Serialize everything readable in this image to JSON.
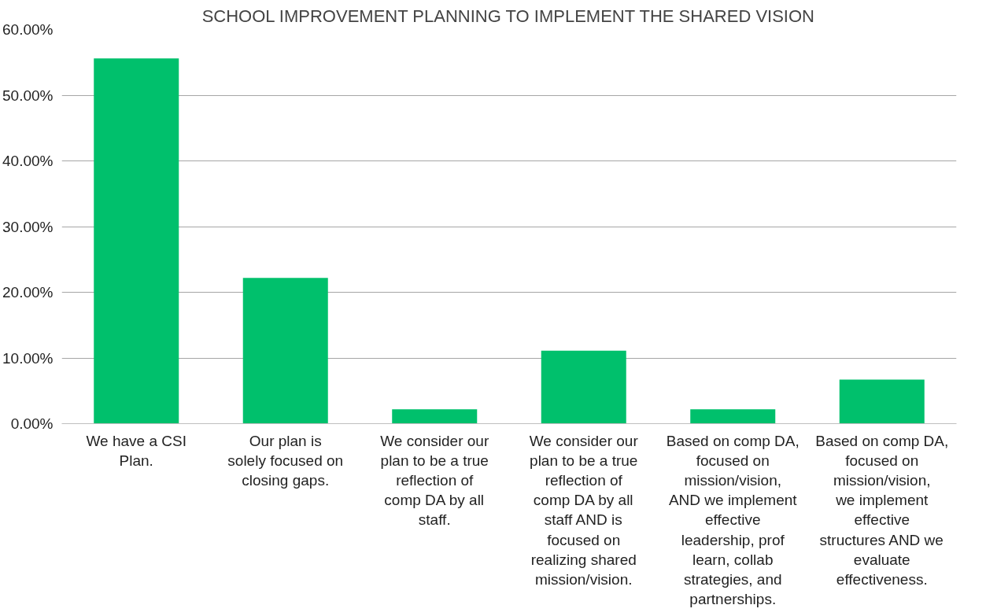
{
  "chart_data": {
    "type": "bar",
    "title": "SCHOOL IMPROVEMENT PLANNING TO IMPLEMENT THE SHARED VISION",
    "categories": [
      "We have a CSI Plan.",
      "Our plan is solely focused on closing gaps.",
      "We consider our plan to be a true reflection of comp DA by all staff.",
      "We consider our plan to be a true reflection of comp DA by all staff AND is focused on realizing shared mission/vision.",
      "Based on comp DA, focused on mission/vision, AND we implement effective leadership, prof learn, collab strategies, and partnerships.",
      "Based on comp DA, focused on mission/vision, we implement effective structures AND we evaluate effectiveness."
    ],
    "values": [
      55.6,
      22.2,
      2.2,
      11.1,
      2.2,
      6.7
    ],
    "color": "#00c06c",
    "ylim": [
      0,
      60
    ],
    "yticks": [
      {
        "value": 0,
        "label": "0.00%"
      },
      {
        "value": 10,
        "label": "10.00%"
      },
      {
        "value": 20,
        "label": "20.00%"
      },
      {
        "value": 30,
        "label": "30.00%"
      },
      {
        "value": 40,
        "label": "40.00%"
      },
      {
        "value": 50,
        "label": "50.00%"
      },
      {
        "value": 60,
        "label": "60.00%"
      }
    ],
    "grid": "y"
  }
}
